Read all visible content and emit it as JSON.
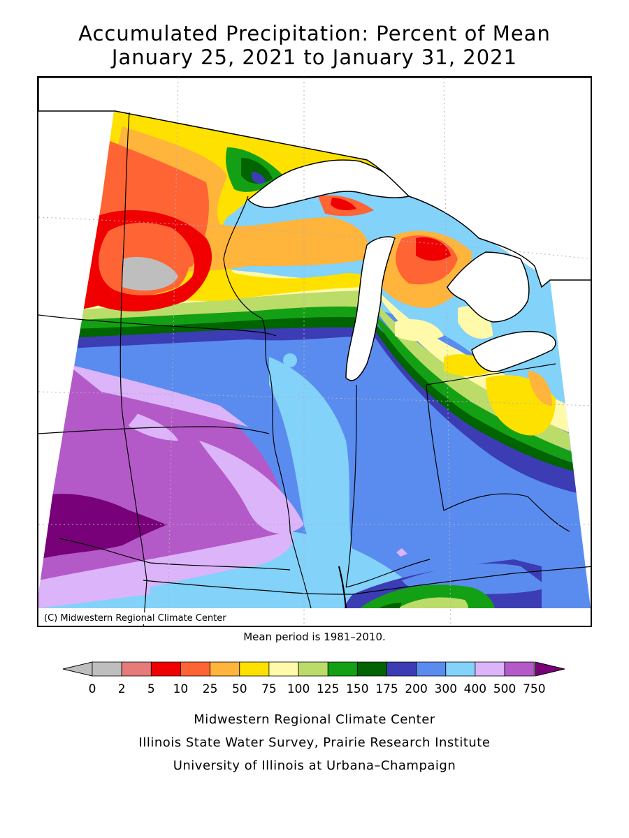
{
  "title_line1": "Accumulated Precipitation: Percent of Mean",
  "title_line2": "January 25, 2021 to January 31, 2021",
  "copyright": "(C) Midwestern Regional Climate Center",
  "mean_period": "Mean period is 1981–2010.",
  "legend": {
    "bins": [
      {
        "from": "0",
        "to": "2",
        "color": "#bebebe"
      },
      {
        "from": "2",
        "to": "5",
        "color": "#e57b7b"
      },
      {
        "from": "5",
        "to": "10",
        "color": "#f00000"
      },
      {
        "from": "10",
        "to": "25",
        "color": "#ff6434"
      },
      {
        "from": "25",
        "to": "50",
        "color": "#ffb43c"
      },
      {
        "from": "50",
        "to": "75",
        "color": "#ffe100"
      },
      {
        "from": "75",
        "to": "100",
        "color": "#fffaaa"
      },
      {
        "from": "100",
        "to": "125",
        "color": "#bcdc6a"
      },
      {
        "from": "125",
        "to": "150",
        "color": "#14a014"
      },
      {
        "from": "150",
        "to": "175",
        "color": "#006400"
      },
      {
        "from": "175",
        "to": "200",
        "color": "#3c3cb4"
      },
      {
        "from": "200",
        "to": "300",
        "color": "#5a8cf0"
      },
      {
        "from": "300",
        "to": "400",
        "color": "#82d2fa"
      },
      {
        "from": "400",
        "to": "500",
        "color": "#dcb4fa"
      },
      {
        "from": "500",
        "to": "750",
        "color": "#b45ac8"
      }
    ],
    "tick_labels": [
      "0",
      "2",
      "5",
      "10",
      "25",
      "50",
      "75",
      "100",
      "125",
      "150",
      "175",
      "200",
      "300",
      "400",
      "500",
      "750"
    ],
    "low_arrow_color": "#bebebe",
    "high_arrow_color": "#780078"
  },
  "credits": [
    "Midwestern Regional Climate Center",
    "Illinois State Water Survey, Prairie Research Institute",
    "University of Illinois at Urbana–Champaign"
  ]
}
